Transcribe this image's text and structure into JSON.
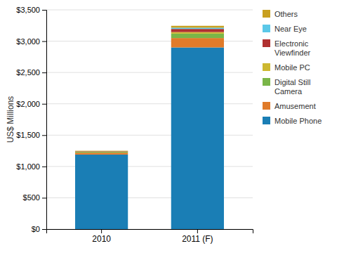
{
  "chart_data": {
    "type": "bar",
    "stacked": true,
    "grid": true,
    "legend": "right",
    "ylabel": "US$ Millions",
    "categories": [
      "2010",
      "2011 (F)"
    ],
    "series": [
      {
        "name": "Mobile Phone",
        "color": "#1a7eb5",
        "values": [
          1190,
          2900
        ]
      },
      {
        "name": "Amusement",
        "color": "#e07b2a",
        "values": [
          30,
          150
        ]
      },
      {
        "name": "Digital Still\nCamera",
        "color": "#7ab648",
        "values": [
          15,
          70
        ]
      },
      {
        "name": "Mobile PC",
        "color": "#cdb830",
        "values": [
          5,
          25
        ]
      },
      {
        "name": "Electronic\nViewfinder",
        "color": "#b03030",
        "values": [
          5,
          50
        ]
      },
      {
        "name": "Near Eye",
        "color": "#5bc8e8",
        "values": [
          0,
          20
        ]
      },
      {
        "name": "Others",
        "color": "#c8a020",
        "values": [
          5,
          30
        ]
      }
    ],
    "ylim": [
      0,
      3500
    ],
    "yticks": [
      {
        "value": 0,
        "label": "$0"
      },
      {
        "value": 500,
        "label": "$500"
      },
      {
        "value": 1000,
        "label": "$1,000"
      },
      {
        "value": 1500,
        "label": "$1,500"
      },
      {
        "value": 2000,
        "label": "$2,000"
      },
      {
        "value": 2500,
        "label": "$2,500"
      },
      {
        "value": 3000,
        "label": "$3,000"
      },
      {
        "value": 3500,
        "label": "$3,500"
      }
    ]
  }
}
